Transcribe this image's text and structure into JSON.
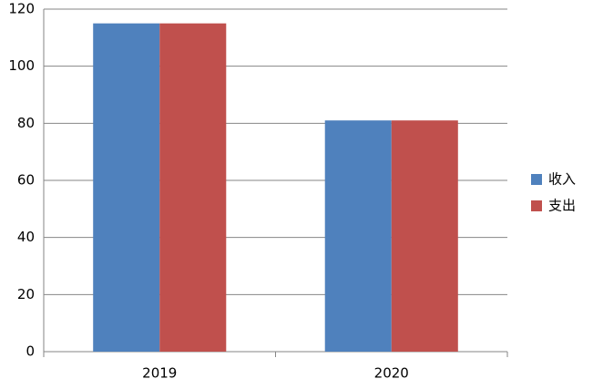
{
  "chart_data": {
    "type": "bar",
    "categories": [
      "2019",
      "2020"
    ],
    "series": [
      {
        "name": "收入",
        "color": "#4f81bd",
        "values": [
          115,
          81
        ]
      },
      {
        "name": "支出",
        "color": "#c0504d",
        "values": [
          115,
          81
        ]
      }
    ],
    "ylim": [
      0,
      120
    ],
    "yticks": [
      0,
      20,
      40,
      60,
      80,
      100,
      120
    ],
    "grid": true,
    "legend": "right"
  }
}
